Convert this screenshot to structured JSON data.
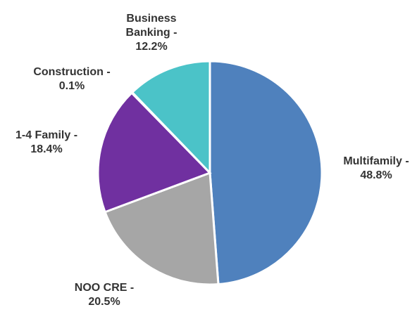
{
  "chart_data": {
    "type": "pie",
    "categories": [
      "Multifamily -",
      "NOO CRE -",
      "1-4 Family  -",
      "Construction -",
      "Business Banking -"
    ],
    "values": [
      48.8,
      20.5,
      18.4,
      0.1,
      12.2
    ],
    "value_labels": [
      "48.8%",
      "20.5%",
      "18.4%",
      "0.1%",
      "12.2%"
    ],
    "colors": [
      "#4f81bd",
      "#a6a6a6",
      "#7030a0",
      "#1f3864",
      "#4bc3c8"
    ]
  }
}
